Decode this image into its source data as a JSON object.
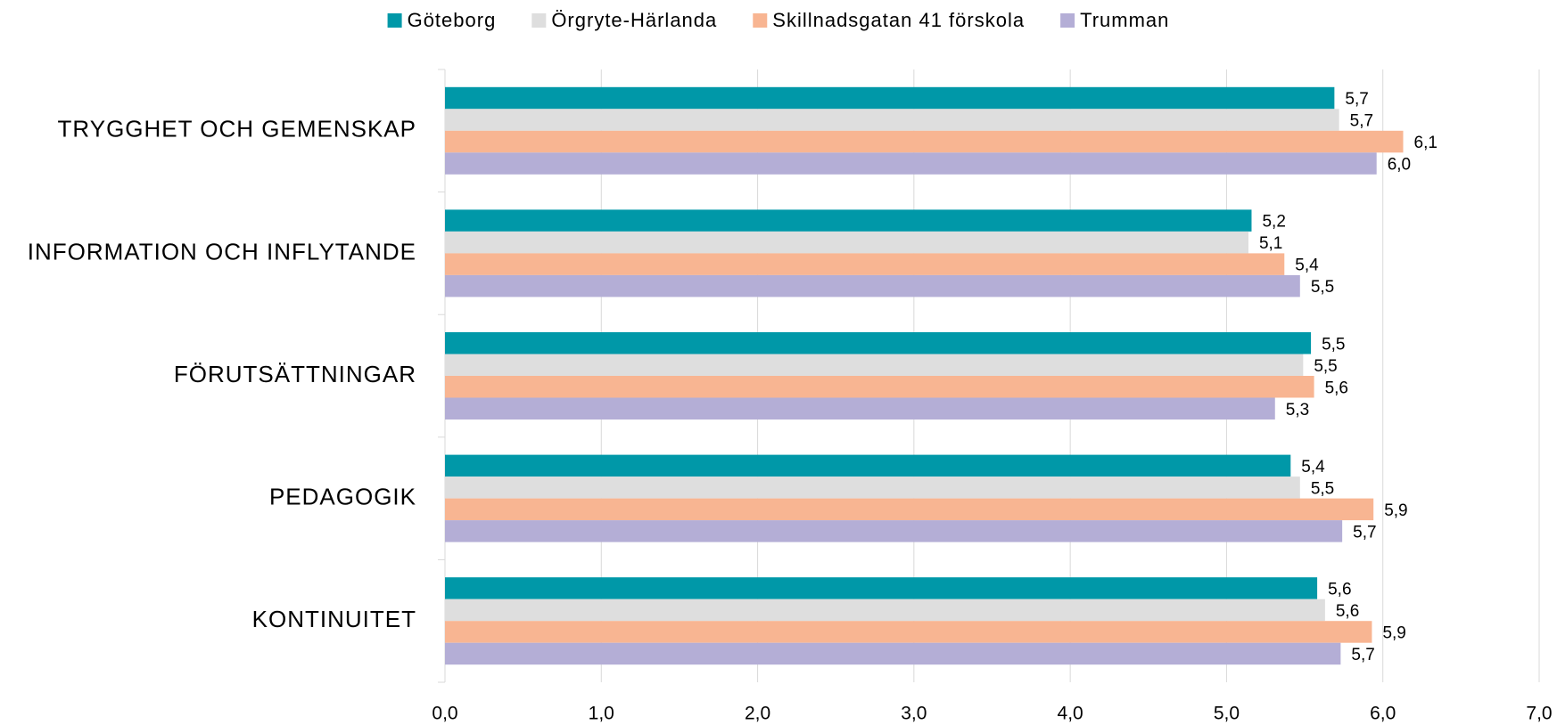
{
  "chart_data": {
    "type": "hbar",
    "categories": [
      "TRYGGHET OCH GEMENSKAP",
      "INFORMATION OCH INFLYTANDE",
      "FÖRUTSÄTTNINGAR",
      "PEDAGOGIK",
      "KONTINUITET"
    ],
    "series": [
      {
        "name": "Göteborg",
        "color": "#0098a8",
        "values": [
          5.69,
          5.16,
          5.54,
          5.41,
          5.58
        ],
        "value_labels": [
          "5,7",
          "5,2",
          "5,5",
          "5,4",
          "5,6"
        ]
      },
      {
        "name": "Örgryte-Härlanda",
        "color": "#dedede",
        "values": [
          5.72,
          5.14,
          5.49,
          5.47,
          5.63
        ],
        "value_labels": [
          "5,7",
          "5,1",
          "5,5",
          "5,5",
          "5,6"
        ]
      },
      {
        "name": "Skillnadsgatan 41 förskola",
        "color": "#f8b592",
        "values": [
          6.13,
          5.37,
          5.56,
          5.94,
          5.93
        ],
        "value_labels": [
          "6,1",
          "5,4",
          "5,6",
          "5,9",
          "5,9"
        ]
      },
      {
        "name": "Trumman",
        "color": "#b4aed6",
        "values": [
          5.96,
          5.47,
          5.31,
          5.74,
          5.73
        ],
        "value_labels": [
          "6,0",
          "5,5",
          "5,3",
          "5,7",
          "5,7"
        ]
      }
    ],
    "xlim": [
      0,
      7
    ],
    "xticks": [
      {
        "value": 0,
        "label": "0,0"
      },
      {
        "value": 1,
        "label": "1,0"
      },
      {
        "value": 2,
        "label": "2,0"
      },
      {
        "value": 3,
        "label": "3,0"
      },
      {
        "value": 4,
        "label": "4,0"
      },
      {
        "value": 5,
        "label": "5,0"
      },
      {
        "value": 6,
        "label": "6,0"
      },
      {
        "value": 7,
        "label": "7,0"
      }
    ],
    "grid": true,
    "legend": "top"
  }
}
